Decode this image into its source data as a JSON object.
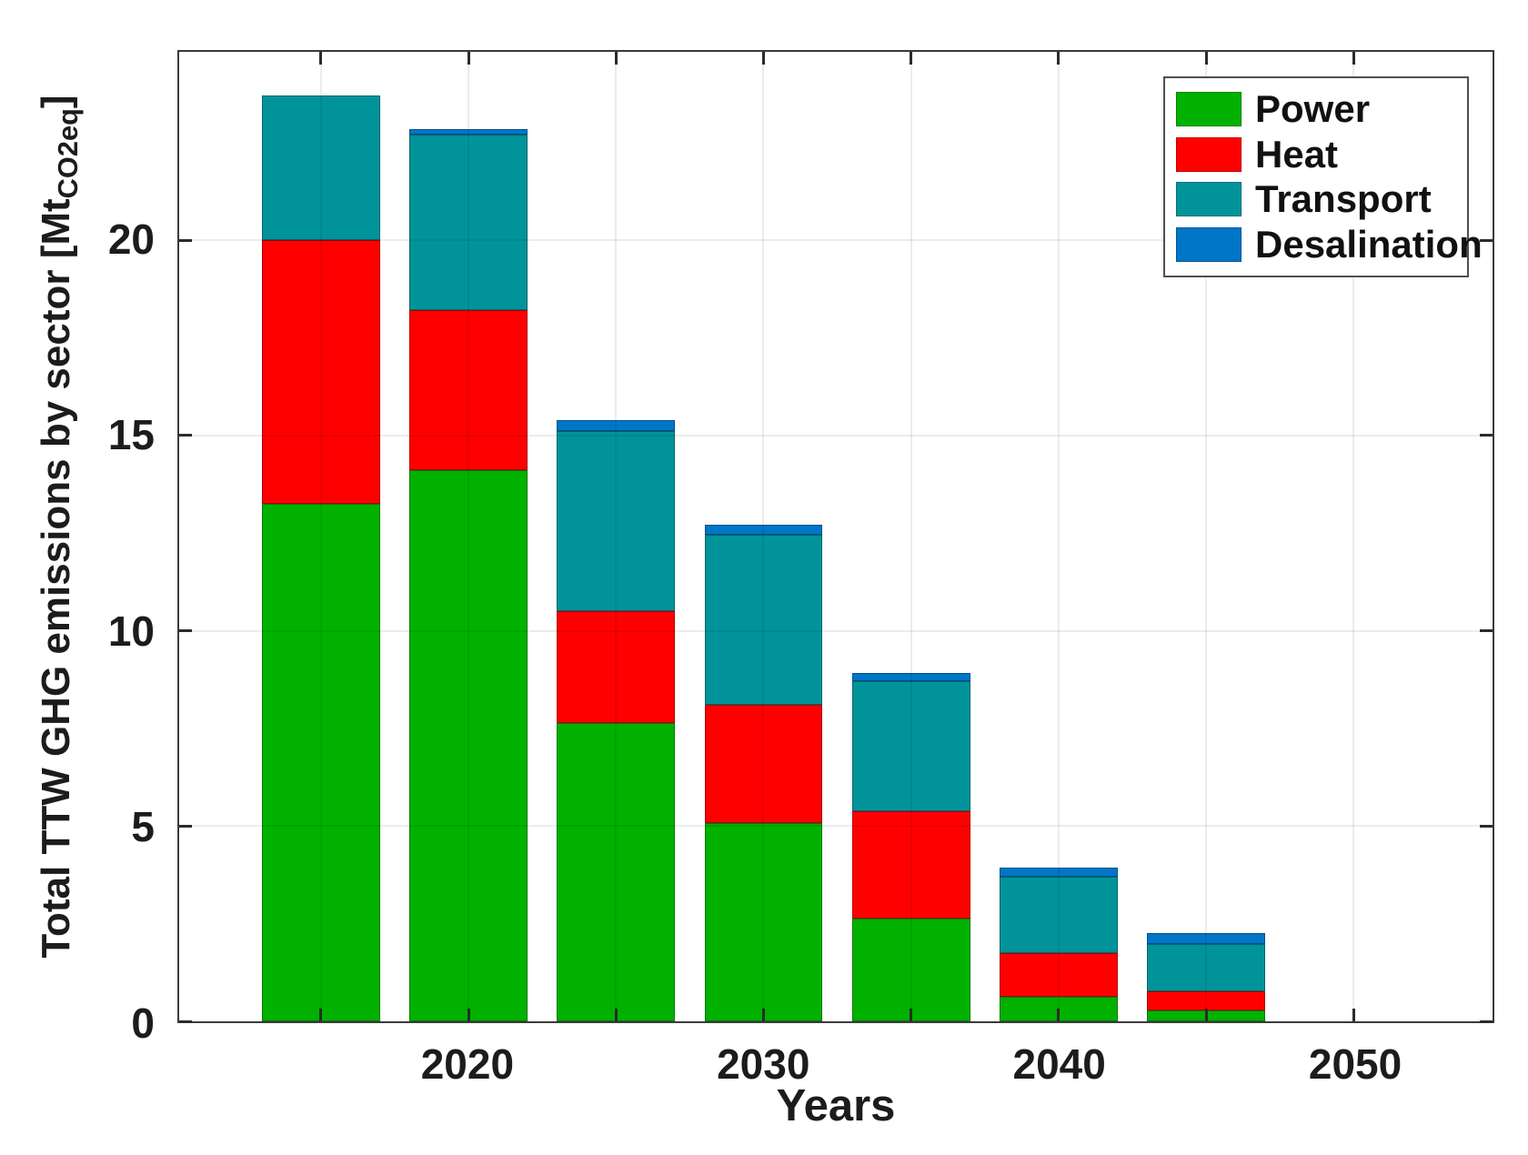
{
  "figure": {
    "background": "#ffffff",
    "text_color": "#1c1c1c",
    "axis_color": "#3a3a3a",
    "grid_color": "#ebebeb",
    "legend_border_color": "#4f4f4f"
  },
  "chart_data": {
    "type": "bar",
    "stacked": true,
    "title": "",
    "xlabel": "Years",
    "ylabel": "Total TTW GHG emissions by sector [Mt_CO2eq]",
    "ylabel_prefix": "Total TTW GHG emissions by sector [Mt",
    "ylabel_subscript": "CO2eq",
    "ylabel_suffix": "]",
    "categories": [
      2015,
      2020,
      2025,
      2030,
      2035,
      2040,
      2045
    ],
    "series": [
      {
        "name": "Power",
        "color": "#00b100",
        "values": [
          13.25,
          14.1,
          7.63,
          5.07,
          2.63,
          0.63,
          0.29
        ]
      },
      {
        "name": "Heat",
        "color": "#ff0000",
        "values": [
          6.75,
          4.1,
          2.87,
          3.03,
          2.76,
          1.11,
          0.48
        ]
      },
      {
        "name": "Transport",
        "color": "#00949a",
        "values": [
          3.7,
          4.5,
          4.62,
          4.36,
          3.31,
          1.97,
          1.2
        ]
      },
      {
        "name": "Desalination",
        "color": "#0076c8",
        "values": [
          0.0,
          0.15,
          0.28,
          0.25,
          0.21,
          0.23,
          0.28
        ]
      }
    ],
    "stack_totals": [
      23.7,
      22.85,
      15.4,
      12.71,
      8.91,
      3.94,
      2.25
    ],
    "bar_width_years": 4,
    "xlim": [
      2010.2,
      2054.7
    ],
    "ylim": [
      0,
      24.82
    ],
    "x_ticks": [
      2015,
      2020,
      2025,
      2030,
      2035,
      2040,
      2045,
      2050
    ],
    "x_tick_labels": [
      "",
      "2020",
      "",
      "2030",
      "",
      "2040",
      "",
      "2050"
    ],
    "y_ticks": [
      0,
      5,
      10,
      15,
      20
    ],
    "y_tick_labels": [
      "0",
      "5",
      "10",
      "15",
      "20"
    ],
    "grid": true,
    "grid_layer": "top",
    "legend_position": "top-right",
    "legend_labels": [
      "Power",
      "Heat",
      "Transport",
      "Desalination"
    ]
  }
}
